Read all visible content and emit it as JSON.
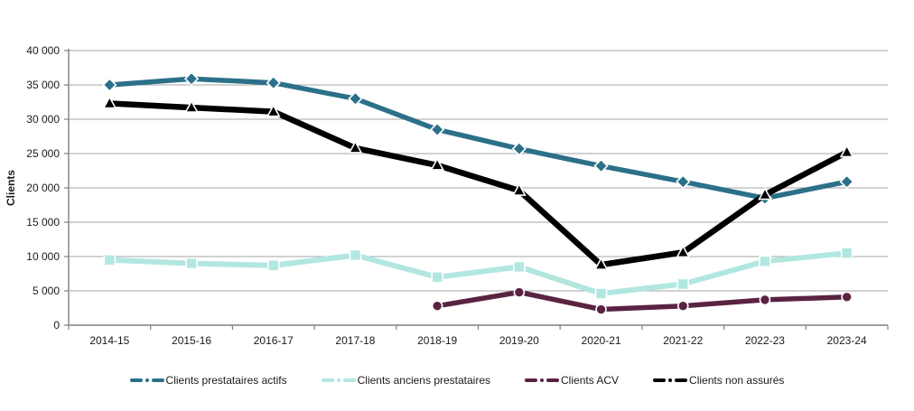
{
  "chart_data": {
    "type": "line",
    "title": "",
    "ylabel": "Clients",
    "categories": [
      "2014-15",
      "2015-16",
      "2016-17",
      "2017-18",
      "2018-19",
      "2019-20",
      "2020-21",
      "2021-22",
      "2022-23",
      "2023-24"
    ],
    "ylim": [
      0,
      40000
    ],
    "ytick_step": 5000,
    "ytick_labels": [
      "0",
      "5 000",
      "10 000",
      "15 000",
      "20 000",
      "25 000",
      "30 000",
      "35 000",
      "40 000"
    ],
    "grid": true,
    "legend_position": "bottom",
    "series": [
      {
        "name": "Clients prestataires actifs",
        "color": "#2b7089",
        "marker": "diamond",
        "values": [
          35000,
          35900,
          35300,
          33000,
          28500,
          25700,
          23200,
          20900,
          18500,
          20900
        ]
      },
      {
        "name": "Clients anciens prestataires",
        "color": "#b2e7e0",
        "marker": "square",
        "values": [
          9500,
          9000,
          8700,
          10200,
          7000,
          8500,
          4600,
          6000,
          9300,
          10500
        ]
      },
      {
        "name": "Clients ACV",
        "color": "#5a2342",
        "marker": "circle",
        "values": [
          null,
          null,
          null,
          null,
          2800,
          4800,
          2300,
          2800,
          3700,
          4100
        ]
      },
      {
        "name": "Clients non assurés",
        "color": "#000000",
        "marker": "triangle",
        "values": [
          32300,
          31700,
          31100,
          25800,
          23300,
          19600,
          8800,
          10600,
          19000,
          25200
        ]
      }
    ],
    "axis_color": "#808080",
    "grid_color": "#a6a6a6",
    "label_color": "#1a1a1a"
  }
}
